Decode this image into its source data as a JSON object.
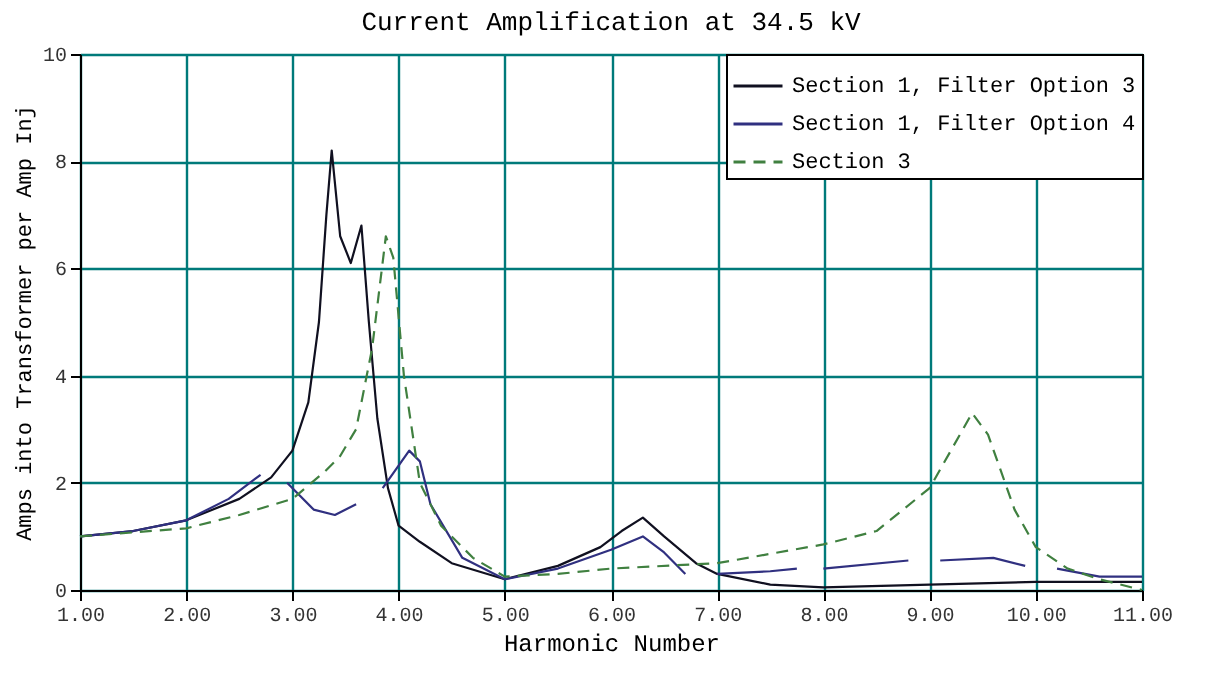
{
  "chart_data": {
    "type": "line",
    "title": "Current Amplification at 34.5 kV",
    "xlabel": "Harmonic Number",
    "ylabel": "Amps into Transformer per Amp Inj",
    "xlim": [
      1,
      11
    ],
    "xticks": [
      {
        "value": 1,
        "label": "1.00"
      },
      {
        "value": 2,
        "label": "2.00"
      },
      {
        "value": 3,
        "label": "3.00"
      },
      {
        "value": 4,
        "label": "4.00"
      },
      {
        "value": 5,
        "label": "5.00"
      },
      {
        "value": 6,
        "label": "6.00"
      },
      {
        "value": 7,
        "label": "7.00"
      },
      {
        "value": 8,
        "label": "8.00"
      },
      {
        "value": 9,
        "label": "9.00"
      },
      {
        "value": 10,
        "label": "10.00"
      },
      {
        "value": 11,
        "label": "11.00"
      }
    ],
    "ylim": [
      0,
      10
    ],
    "yticks": [
      0,
      2,
      4,
      6,
      8,
      10
    ],
    "grid": true,
    "legend": "top right",
    "marker": "none",
    "series": [
      {
        "name": "Section 1, Filter Option 3",
        "color": "#101020",
        "line_style": "solid",
        "x": [
          1,
          1.5,
          2,
          2.5,
          2.8,
          3,
          3.15,
          3.25,
          3.32,
          3.37,
          3.45,
          3.55,
          3.65,
          3.72,
          3.8,
          3.9,
          4,
          4.2,
          4.5,
          5,
          5.5,
          5.9,
          6.1,
          6.3,
          6.5,
          6.8,
          7,
          7.5,
          8,
          9,
          10,
          11
        ],
        "values": [
          1.0,
          1.1,
          1.3,
          1.7,
          2.1,
          2.6,
          3.5,
          5.0,
          7.0,
          8.2,
          6.6,
          6.1,
          6.8,
          5.0,
          3.2,
          1.9,
          1.2,
          0.9,
          0.5,
          0.2,
          0.45,
          0.8,
          1.1,
          1.35,
          1.0,
          0.5,
          0.3,
          0.1,
          0.05,
          0.1,
          0.15,
          0.15
        ]
      },
      {
        "name": "Section 1, Filter Option 4",
        "color": "#303080",
        "line_style": "solid",
        "x": [
          1,
          1.5,
          2,
          2.4,
          2.7,
          2.85,
          2.95,
          3.2,
          3.4,
          3.6,
          3.75,
          3.85,
          4.1,
          4.2,
          4.3,
          4.6,
          5,
          5.5,
          6,
          6.3,
          6.5,
          6.7,
          6.85,
          7,
          7.5,
          7.75,
          7.9,
          8,
          8.8,
          8.95,
          9.1,
          9.6,
          9.9,
          10.05,
          10.2,
          10.6,
          11
        ],
        "values": [
          1.0,
          1.1,
          1.3,
          1.7,
          2.15,
          null,
          2.0,
          1.5,
          1.4,
          1.6,
          null,
          1.9,
          2.6,
          2.4,
          1.6,
          0.6,
          0.2,
          0.4,
          0.75,
          1.0,
          0.7,
          0.3,
          null,
          0.3,
          0.35,
          0.4,
          null,
          0.4,
          0.55,
          null,
          0.55,
          0.6,
          0.45,
          null,
          0.4,
          0.25,
          0.25
        ]
      },
      {
        "name": "Section 3",
        "color": "#408040",
        "line_style": "dashed",
        "x": [
          1,
          2,
          2.5,
          3,
          3.3,
          3.45,
          3.6,
          3.75,
          3.88,
          3.95,
          4.05,
          4.2,
          4.4,
          4.7,
          5,
          5.5,
          6,
          7,
          8,
          8.5,
          9,
          9.2,
          9.4,
          9.55,
          9.8,
          10,
          10.3,
          10.6,
          11
        ],
        "values": [
          1.0,
          1.15,
          1.4,
          1.7,
          2.2,
          2.5,
          3.0,
          4.5,
          6.6,
          6.2,
          4.0,
          2.0,
          1.2,
          0.6,
          0.25,
          0.3,
          0.4,
          0.5,
          0.85,
          1.1,
          1.9,
          2.6,
          3.3,
          2.9,
          1.5,
          0.8,
          0.4,
          0.2,
          0.0
        ]
      }
    ]
  }
}
